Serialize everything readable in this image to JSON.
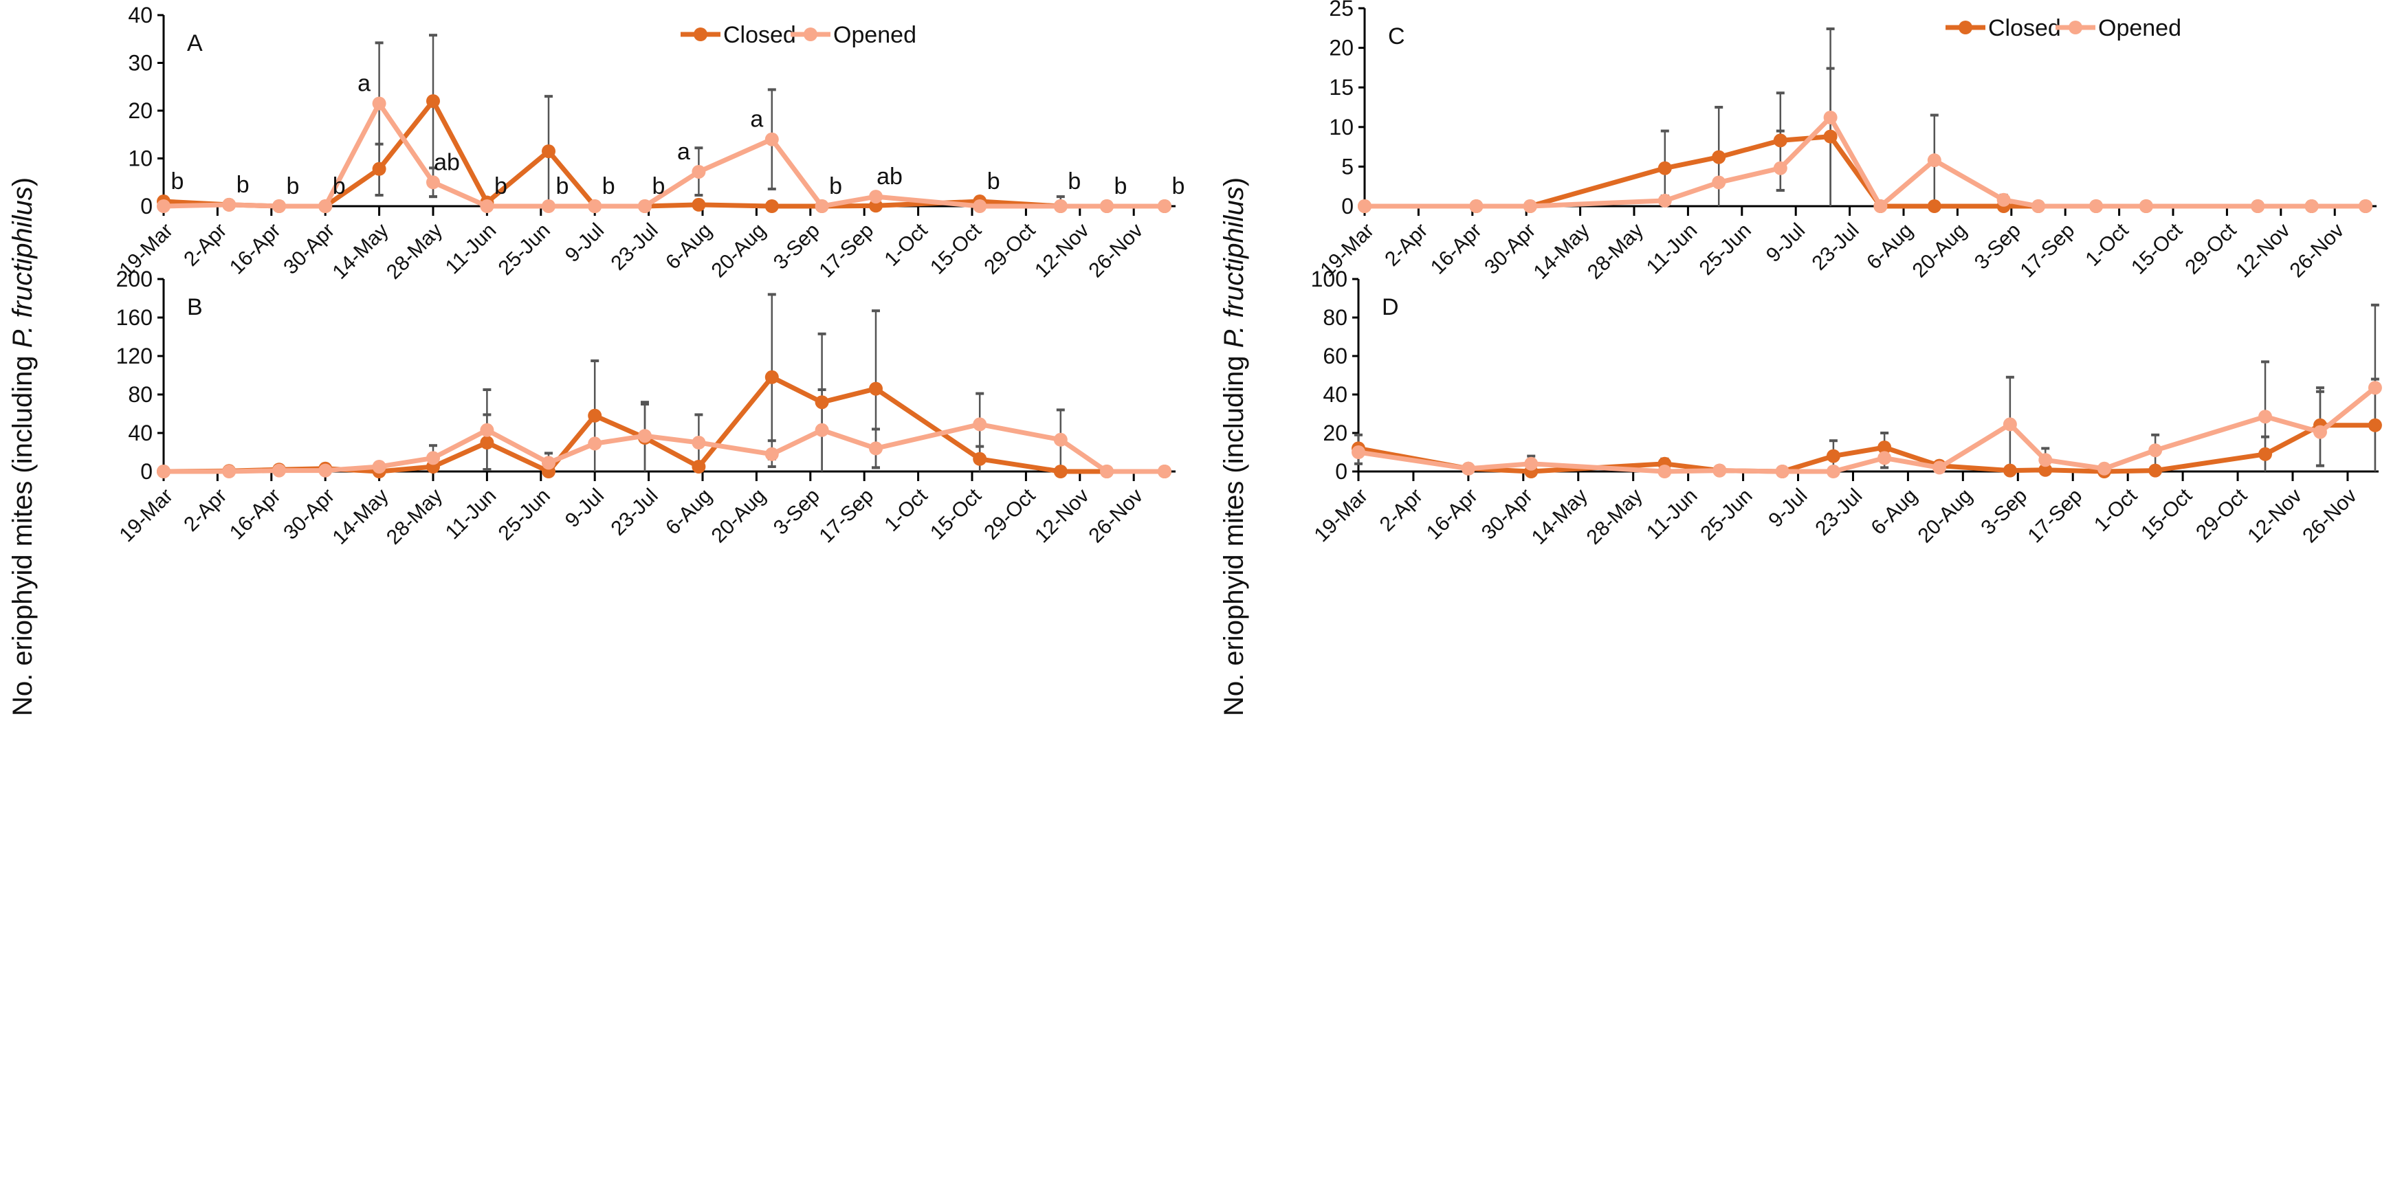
{
  "ylabel_prefix": "No. eriophyid mites (including ",
  "ylabel_italic": "P. fructiphilus",
  "ylabel_suffix": ")",
  "colors": {
    "closed": "#E06A22",
    "opened": "#F9A88A",
    "error": "#555555",
    "axis": "#000000"
  },
  "chart_data": [
    {
      "panel": "A",
      "type": "line",
      "ylim": [
        0,
        40
      ],
      "yticks": [
        0,
        10,
        20,
        30,
        40
      ],
      "xunit": "days since 19-Mar",
      "xtick_labels": [
        "19-Mar",
        "2-Apr",
        "16-Apr",
        "30-Apr",
        "14-May",
        "28-May",
        "11-Jun",
        "25-Jun",
        "9-Jul",
        "23-Jul",
        "6-Aug",
        "20-Aug",
        "3-Sep",
        "17-Sep",
        "1-Oct",
        "15-Oct",
        "29-Oct",
        "12-Nov",
        "26-Nov"
      ],
      "legend": [
        "Closed",
        "Opened"
      ],
      "x": [
        0,
        17,
        30,
        42,
        56,
        70,
        84,
        100,
        112,
        125,
        139,
        158,
        171,
        185,
        212,
        233,
        245,
        260
      ],
      "series": [
        {
          "name": "Closed",
          "values": [
            1,
            0.3,
            0,
            0,
            7.8,
            22,
            0.8,
            11.5,
            0,
            0,
            0.3,
            0,
            0,
            0.1,
            1,
            0,
            0,
            0
          ]
        },
        {
          "name": "Opened",
          "values": [
            0,
            0.3,
            0,
            0,
            21.5,
            5,
            0,
            0,
            0,
            0,
            7.2,
            14,
            0,
            2,
            0,
            0,
            0,
            0
          ]
        }
      ],
      "errors": [
        [
          0,
          0,
          1.5
        ],
        [
          56,
          2.3,
          34.2
        ],
        [
          56,
          2.3,
          13
        ],
        [
          70,
          2,
          35.8
        ],
        [
          70,
          2,
          8
        ],
        [
          100,
          0,
          23
        ],
        [
          139,
          2.3,
          12.2
        ],
        [
          158,
          3.6,
          24.4
        ],
        [
          185,
          0,
          2.5
        ],
        [
          233,
          0,
          2
        ]
      ],
      "letters": [
        {
          "x": 0,
          "y": 1,
          "text": "b"
        },
        {
          "x": 17,
          "y": 0.3,
          "text": "b"
        },
        {
          "x": 30,
          "y": 0,
          "text": "b"
        },
        {
          "x": 42,
          "y": 0,
          "text": "b"
        },
        {
          "x": 56,
          "y": 21.5,
          "text": "a"
        },
        {
          "x": 70,
          "y": 5,
          "text": "ab"
        },
        {
          "x": 84,
          "y": 0,
          "text": "b"
        },
        {
          "x": 100,
          "y": 0,
          "text": "b"
        },
        {
          "x": 112,
          "y": 0,
          "text": "b"
        },
        {
          "x": 125,
          "y": 0,
          "text": "b"
        },
        {
          "x": 139,
          "y": 7.2,
          "text": "a"
        },
        {
          "x": 158,
          "y": 14,
          "text": "a"
        },
        {
          "x": 171,
          "y": 0,
          "text": "b"
        },
        {
          "x": 185,
          "y": 2,
          "text": "ab"
        },
        {
          "x": 233,
          "y": 1,
          "text": "b"
        },
        {
          "x": 245,
          "y": 0,
          "text": "b"
        },
        {
          "x": 260,
          "y": 0,
          "text": "b"
        },
        {
          "x": 212,
          "y": 1,
          "text": "b"
        }
      ]
    },
    {
      "panel": "B",
      "type": "line",
      "ylim": [
        0,
        200
      ],
      "yticks": [
        0,
        40,
        80,
        120,
        160,
        200
      ],
      "xunit": "days since 19-Mar",
      "xtick_labels": [
        "19-Mar",
        "2-Apr",
        "16-Apr",
        "30-Apr",
        "14-May",
        "28-May",
        "11-Jun",
        "25-Jun",
        "9-Jul",
        "23-Jul",
        "6-Aug",
        "20-Aug",
        "3-Sep",
        "17-Sep",
        "1-Oct",
        "15-Oct",
        "29-Oct",
        "12-Nov",
        "26-Nov"
      ],
      "x": [
        0,
        17,
        30,
        42,
        56,
        70,
        84,
        100,
        112,
        125,
        139,
        158,
        171,
        185,
        212,
        233,
        245,
        260
      ],
      "series": [
        {
          "name": "Closed",
          "values": [
            0,
            0.5,
            2,
            3,
            0,
            5,
            30,
            0,
            58,
            35,
            5,
            98,
            72,
            86,
            13,
            0,
            0,
            0
          ]
        },
        {
          "name": "Opened",
          "values": [
            0,
            0,
            1,
            1,
            5,
            14,
            43,
            9,
            29,
            37,
            30,
            18,
            43,
            24,
            49,
            33,
            0,
            0
          ]
        }
      ],
      "errors": [
        [
          70,
          0,
          27
        ],
        [
          84,
          2,
          85
        ],
        [
          84,
          2,
          59
        ],
        [
          100,
          0,
          19
        ],
        [
          112,
          0,
          115
        ],
        [
          125,
          0,
          72
        ],
        [
          125,
          0,
          70
        ],
        [
          139,
          0,
          59
        ],
        [
          158,
          5,
          184
        ],
        [
          158,
          13,
          32
        ],
        [
          171,
          0,
          143
        ],
        [
          171,
          0,
          85
        ],
        [
          185,
          4,
          167
        ],
        [
          185,
          4,
          44
        ],
        [
          212,
          0,
          81
        ],
        [
          212,
          0,
          26
        ],
        [
          233,
          0,
          64
        ]
      ]
    },
    {
      "panel": "C",
      "type": "line",
      "ylim": [
        0,
        25
      ],
      "yticks": [
        0,
        5,
        10,
        15,
        20,
        25
      ],
      "xunit": "days since 19-Mar",
      "xtick_labels": [
        "19-Mar",
        "2-Apr",
        "16-Apr",
        "30-Apr",
        "14-May",
        "28-May",
        "11-Jun",
        "25-Jun",
        "9-Jul",
        "23-Jul",
        "6-Aug",
        "20-Aug",
        "3-Sep",
        "17-Sep",
        "1-Oct",
        "15-Oct",
        "29-Oct",
        "12-Nov",
        "26-Nov"
      ],
      "legend": [
        "Closed",
        "Opened"
      ],
      "x": [
        0,
        29,
        43,
        78,
        92,
        108,
        121,
        134,
        148,
        166,
        175,
        190,
        203,
        232,
        246,
        260
      ],
      "series": [
        {
          "name": "Closed",
          "values": [
            0,
            0,
            0,
            4.8,
            6.2,
            8.3,
            8.8,
            0,
            0,
            0,
            0,
            0,
            0,
            0,
            0,
            0
          ]
        },
        {
          "name": "Opened",
          "values": [
            0,
            0,
            0,
            0.7,
            3,
            4.8,
            11.2,
            0,
            5.8,
            0.8,
            0,
            0,
            0,
            0,
            0,
            0
          ]
        }
      ],
      "errors": [
        [
          78,
          1.3,
          9.5
        ],
        [
          92,
          0,
          12.5
        ],
        [
          108,
          2,
          14.3
        ],
        [
          108,
          2,
          9.5
        ],
        [
          121,
          0,
          22.4
        ],
        [
          121,
          0,
          17.4
        ],
        [
          148,
          0,
          11.5
        ],
        [
          166,
          0,
          1.4
        ]
      ]
    },
    {
      "panel": "D",
      "type": "line",
      "ylim": [
        0,
        100
      ],
      "yticks": [
        0,
        20,
        40,
        60,
        80,
        100
      ],
      "xunit": "days since 19-Mar",
      "xtick_labels": [
        "19-Mar",
        "2-Apr",
        "16-Apr",
        "30-Apr",
        "14-May",
        "28-May",
        "11-Jun",
        "25-Jun",
        "9-Jul",
        "23-Jul",
        "6-Aug",
        "20-Aug",
        "3-Sep",
        "17-Sep",
        "1-Oct",
        "15-Oct",
        "29-Oct",
        "12-Nov",
        "26-Nov"
      ],
      "x": [
        0,
        28,
        44,
        78,
        92,
        108,
        121,
        134,
        148,
        166,
        175,
        190,
        203,
        231,
        245,
        259
      ],
      "series": [
        {
          "name": "Closed",
          "values": [
            12,
            1.5,
            0,
            4,
            0.5,
            0,
            8,
            12.5,
            3,
            0.5,
            0.8,
            0,
            0.5,
            9,
            24,
            24
          ]
        },
        {
          "name": "Opened",
          "values": [
            10,
            1.5,
            4,
            0,
            0.5,
            0,
            0,
            7,
            2,
            24.5,
            6,
            1.5,
            11,
            28.5,
            20.5,
            43.5
          ]
        }
      ],
      "errors": [
        [
          0,
          4,
          19
        ],
        [
          44,
          0,
          8
        ],
        [
          78,
          0,
          6.5
        ],
        [
          121,
          0,
          16
        ],
        [
          134,
          2,
          20
        ],
        [
          166,
          0,
          49
        ],
        [
          175,
          0,
          12
        ],
        [
          203,
          2,
          19
        ],
        [
          231,
          0,
          57
        ],
        [
          231,
          0,
          18
        ],
        [
          245,
          3,
          43.5
        ],
        [
          245,
          3,
          41.5
        ],
        [
          259,
          0,
          86.5
        ],
        [
          259,
          0,
          48
        ]
      ]
    }
  ]
}
